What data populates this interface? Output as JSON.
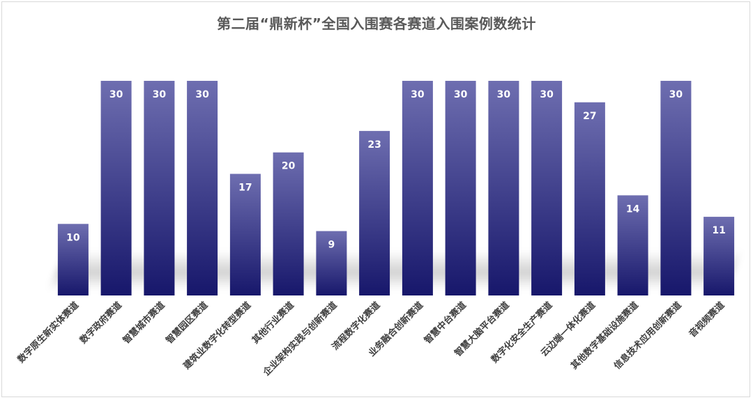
{
  "chart_data": {
    "type": "bar",
    "title": "第二届“鼎新杯”全国入围赛各赛道入围案例数统计",
    "xlabel": "",
    "ylabel": "",
    "ylim": [
      0,
      30
    ],
    "grid": false,
    "legend": "none",
    "categories": [
      "数字原生新实体赛道",
      "数字政府赛道",
      "智慧城市赛道",
      "智慧园区赛道",
      "建筑业数字化转型赛道",
      "其他行业赛道",
      "企业架构实践与创新赛道",
      "流程数字化赛道",
      "业务融合创新赛道",
      "智慧中台赛道",
      "智慧大脑平台赛道",
      "数字化安全生产赛道",
      "云边端一体化赛道",
      "其他数字基础设施赛道",
      "信息技术应用创新赛道",
      "音视频赛道"
    ],
    "values": [
      10,
      30,
      30,
      30,
      17,
      20,
      9,
      23,
      30,
      30,
      30,
      30,
      27,
      14,
      30,
      11
    ],
    "colors": {
      "bar_top": "#6e6eb0",
      "bar_bottom": "#17176b",
      "label": "#ffffff",
      "title": "#595959",
      "tick": "#404040"
    }
  }
}
